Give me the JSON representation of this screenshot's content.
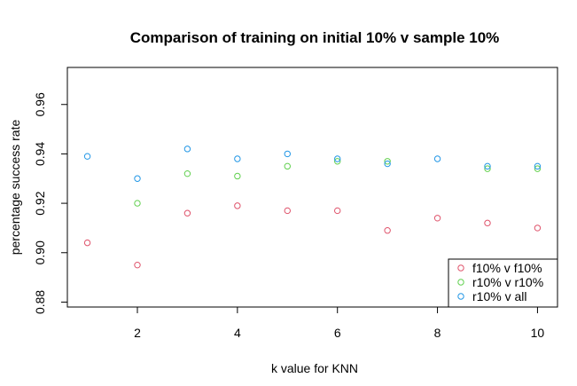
{
  "chart_data": {
    "type": "scatter",
    "title": "Comparison of training on initial 10% v sample 10%",
    "xlabel": "k value for KNN",
    "ylabel": "percentage success rate",
    "xlim": [
      0.6,
      10.4
    ],
    "ylim": [
      0.878,
      0.975
    ],
    "xticks": [
      2,
      4,
      6,
      8,
      10
    ],
    "yticks": [
      0.88,
      0.9,
      0.92,
      0.94,
      0.96
    ],
    "ytick_labels": [
      "0.88",
      "0.90",
      "0.92",
      "0.94",
      "0.96"
    ],
    "grid": false,
    "legend_position": "bottom-right",
    "series": [
      {
        "name": "f10% v f10%",
        "color": "#DF536B",
        "x": [
          1,
          2,
          3,
          4,
          5,
          6,
          7,
          8,
          9,
          10
        ],
        "y": [
          0.904,
          0.895,
          0.916,
          0.919,
          0.917,
          0.917,
          0.909,
          0.914,
          0.912,
          0.91
        ]
      },
      {
        "name": "r10% v r10%",
        "color": "#61D04F",
        "x": [
          1,
          2,
          3,
          4,
          5,
          6,
          7,
          8,
          9,
          10
        ],
        "y": [
          null,
          0.92,
          0.932,
          0.931,
          0.935,
          0.937,
          0.937,
          null,
          0.934,
          0.934
        ]
      },
      {
        "name": "r10% v all",
        "color": "#2297E6",
        "x": [
          1,
          2,
          3,
          4,
          5,
          6,
          7,
          8,
          9,
          10
        ],
        "y": [
          0.939,
          0.93,
          0.942,
          0.938,
          0.94,
          0.938,
          0.936,
          0.938,
          0.935,
          0.935
        ]
      }
    ]
  }
}
